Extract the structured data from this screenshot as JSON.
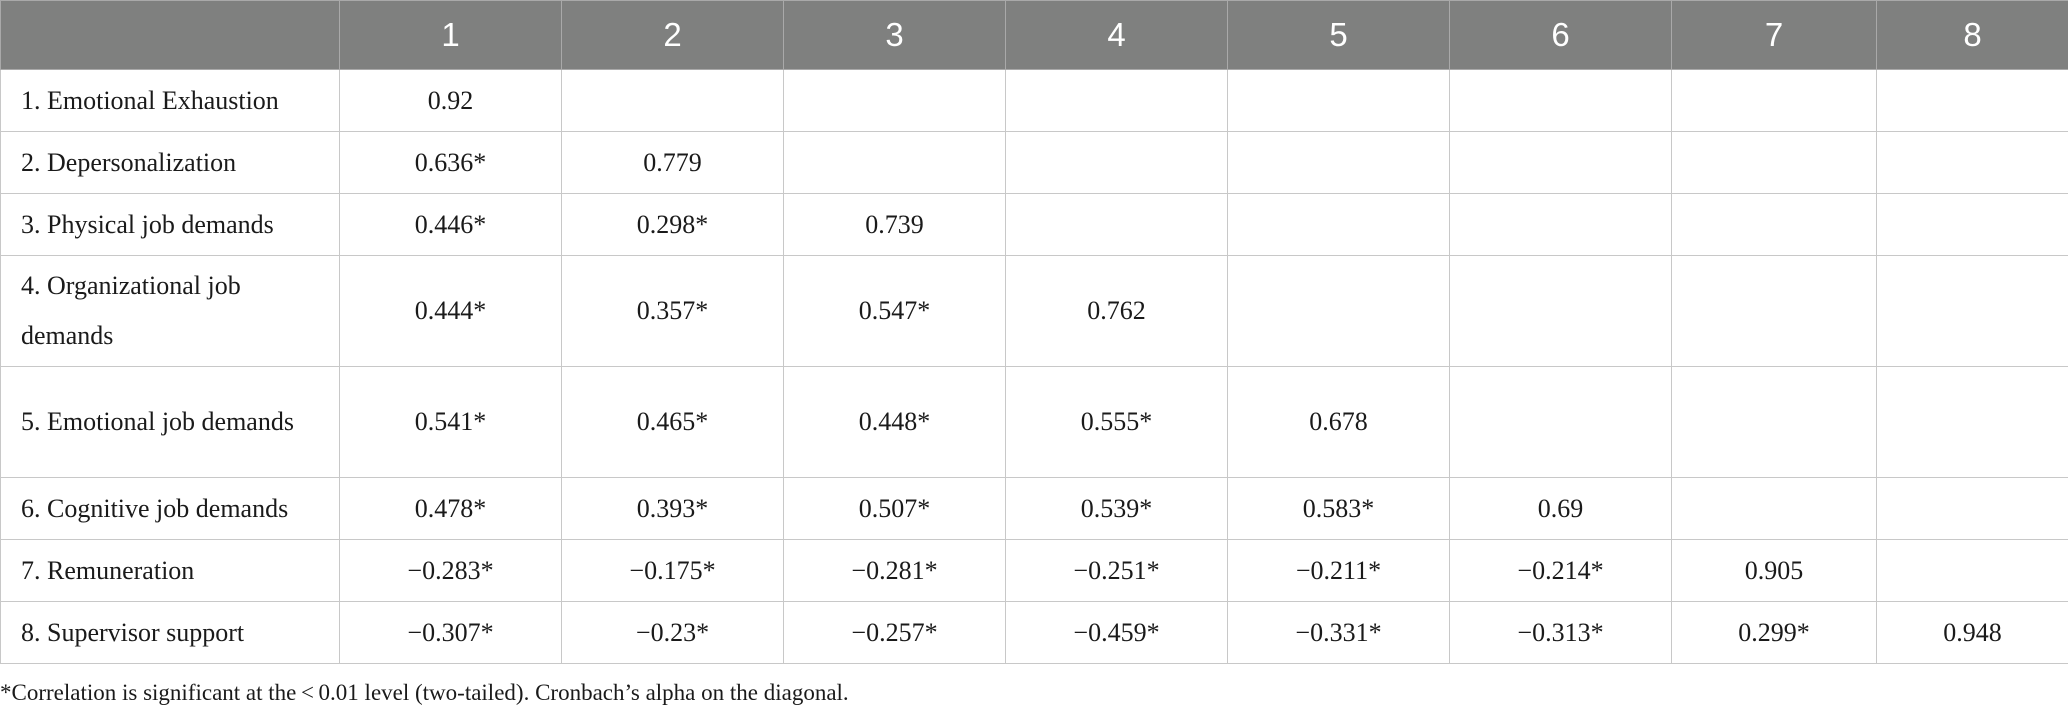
{
  "table": {
    "columns": [
      "",
      "1",
      "2",
      "3",
      "4",
      "5",
      "6",
      "7",
      "8"
    ],
    "rows": [
      {
        "label": "1. Emotional Exhaustion",
        "values": [
          "0.92",
          "",
          "",
          "",
          "",
          "",
          "",
          ""
        ]
      },
      {
        "label": "2. Depersonalization",
        "values": [
          "0.636*",
          "0.779",
          "",
          "",
          "",
          "",
          "",
          ""
        ]
      },
      {
        "label": "3. Physical job demands",
        "values": [
          "0.446*",
          "0.298*",
          "0.739",
          "",
          "",
          "",
          "",
          ""
        ]
      },
      {
        "label": "4. Organizational job demands",
        "values": [
          "0.444*",
          "0.357*",
          "0.547*",
          "0.762",
          "",
          "",
          "",
          ""
        ]
      },
      {
        "label": "5. Emotional job demands",
        "values": [
          "0.541*",
          "0.465*",
          "0.448*",
          "0.555*",
          "0.678",
          "",
          "",
          ""
        ]
      },
      {
        "label": "6. Cognitive job demands",
        "values": [
          "0.478*",
          "0.393*",
          "0.507*",
          "0.539*",
          "0.583*",
          "0.69",
          "",
          ""
        ]
      },
      {
        "label": "7. Remuneration",
        "values": [
          "−0.283*",
          "−0.175*",
          "−0.281*",
          "−0.251*",
          "−0.211*",
          "−0.214*",
          "0.905",
          ""
        ]
      },
      {
        "label": "8. Supervisor support",
        "values": [
          "−0.307*",
          "−0.23*",
          "−0.257*",
          "−0.459*",
          "−0.331*",
          "−0.313*",
          "0.299*",
          "0.948"
        ]
      }
    ]
  },
  "footnote": "*Correlation is significant at the < 0.01 level (two-tailed). Cronbach’s alpha on the diagonal."
}
